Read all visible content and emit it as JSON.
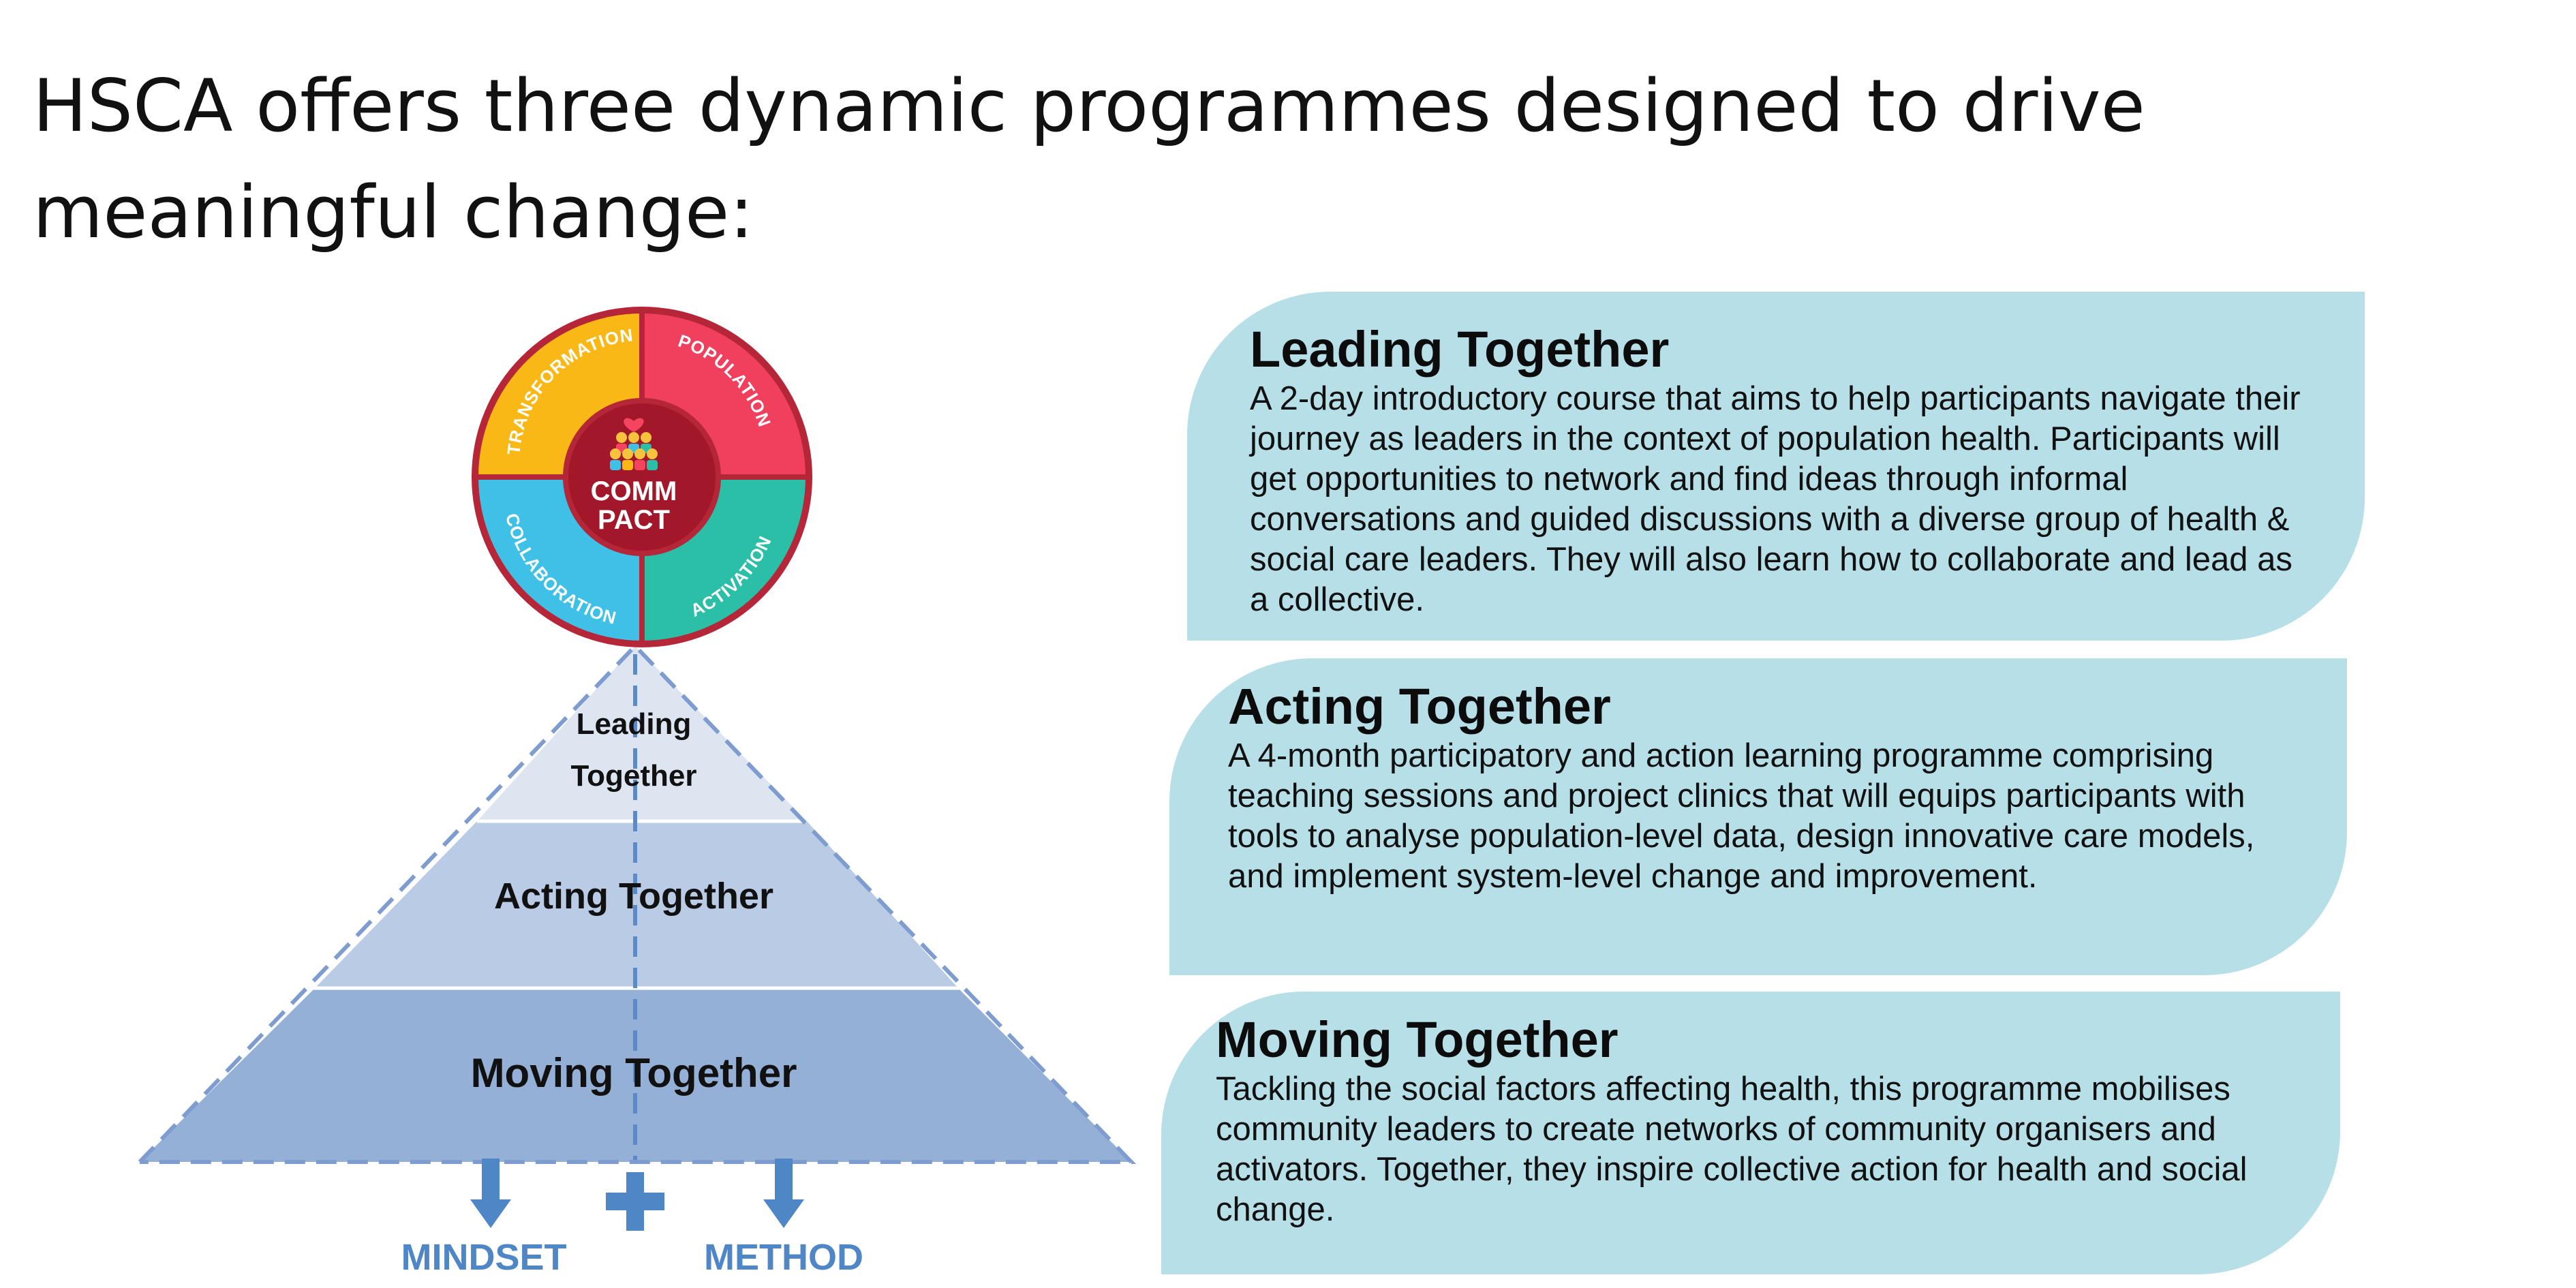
{
  "headline": "HSCA offers three dynamic programmes designed to drive meaningful change:",
  "wheel": {
    "segments": [
      "TRANSFORMATION",
      "POPULATION",
      "COLLABORATION",
      "ACTIVATION"
    ],
    "center_line1": "COMM",
    "center_line2": "PACT",
    "colors": {
      "transformation": "#f9b816",
      "population": "#f13f5e",
      "collaboration": "#3fc0e6",
      "activation": "#2bbfa7",
      "ring": "#b52638",
      "center": "#a3172b"
    }
  },
  "pyramid": {
    "levels": {
      "leading": "Leading Together",
      "acting": "Acting Together",
      "moving": "Moving Together"
    },
    "outputs": {
      "mindset": "MINDSET",
      "method": "METHOD"
    },
    "colors": {
      "top": "#dde5f1",
      "middle": "#b9cbe5",
      "bottom": "#94b0d6",
      "accent": "#4f86c6"
    }
  },
  "programmes": [
    {
      "title": "Leading Together",
      "description": "A 2-day introductory course that aims to help participants navigate their journey as leaders in the context of population health. Participants will get opportunities to network and find ideas through informal conversations and guided discussions with a diverse group of health & social care leaders. They will also learn how to collaborate and lead as a collective."
    },
    {
      "title": "Acting Together",
      "description": "A 4-month participatory and action learning programme comprising teaching sessions and project clinics that will equips participants with tools to analyse population-level data, design innovative care models, and implement system-level change and improvement."
    },
    {
      "title": "Moving Together",
      "description": "Tackling the social factors affecting health, this programme mobilises community leaders to create networks of community organisers and activators. Together, they inspire collective action for health and social change."
    }
  ],
  "card_color": "#b6dfe7"
}
